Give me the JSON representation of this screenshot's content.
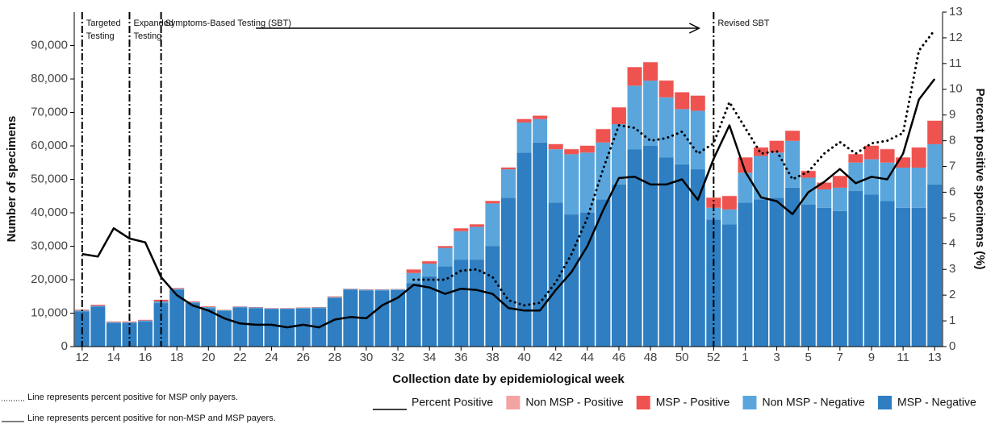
{
  "chart_data": {
    "type": "bar",
    "stacked": true,
    "x_label": "Collection date by epidemiological week",
    "y_label": "Number of specimens",
    "y2_label": "Percent positive specimens (%)",
    "categories": [
      "12",
      null,
      "14",
      null,
      "16",
      null,
      "18",
      null,
      "20",
      null,
      "22",
      null,
      "24",
      null,
      "26",
      null,
      "28",
      null,
      "30",
      null,
      "32",
      null,
      "34",
      null,
      "36",
      null,
      "38",
      null,
      "40",
      null,
      "42",
      null,
      "44",
      null,
      "46",
      null,
      "48",
      null,
      "50",
      null,
      "52",
      null,
      "1",
      null,
      "3",
      null,
      "5",
      null,
      "7",
      null,
      "9",
      null,
      "11",
      null,
      "13"
    ],
    "ylim": [
      0,
      100000
    ],
    "yticks": [
      0,
      {
        "value": 10000,
        "label": "10,000"
      },
      {
        "value": 20000,
        "label": "20,000"
      },
      {
        "value": 30000,
        "label": "30,000"
      },
      {
        "value": 40000,
        "label": "40,000"
      },
      {
        "value": 50000,
        "label": "50,000"
      },
      {
        "value": 60000,
        "label": "60,000"
      },
      {
        "value": 70000,
        "label": "70,000"
      },
      {
        "value": 80000,
        "label": "80,000"
      },
      {
        "value": 90000,
        "label": "90,000"
      }
    ],
    "y2lim": [
      0,
      13
    ],
    "y2ticks": [
      0,
      1,
      2,
      3,
      4,
      5,
      6,
      7,
      8,
      9,
      10,
      11,
      12,
      13
    ],
    "grid": false,
    "phases": [
      {
        "text": "Targeted Testing",
        "x": 0
      },
      {
        "text": "Expanded Testing",
        "x": 3
      },
      {
        "text": "Symptoms-Based Testing (SBT)",
        "x": 5
      },
      {
        "text": "Revised SBT",
        "x": 40
      }
    ],
    "series": [
      {
        "name": "Percent Positive",
        "type": "line",
        "axis": "y2",
        "color": "#000000",
        "dash": "solid",
        "note": "Line represents percent positive for non-MSP and MSP payers.",
        "values": [
          3.6,
          3.5,
          4.6,
          4.2,
          4.05,
          2.7,
          2.0,
          1.6,
          1.4,
          1.1,
          0.9,
          0.85,
          0.85,
          0.75,
          0.85,
          0.75,
          1.05,
          1.15,
          1.1,
          1.6,
          1.9,
          2.4,
          2.3,
          2.05,
          2.25,
          2.2,
          2.05,
          1.5,
          1.4,
          1.4,
          2.2,
          2.9,
          3.9,
          5.3,
          6.55,
          6.6,
          6.3,
          6.3,
          6.5,
          5.7,
          7.3,
          8.6,
          6.8,
          5.8,
          5.65,
          5.15,
          6.0,
          6.4,
          6.9,
          6.35,
          6.6,
          6.5,
          7.5,
          9.6,
          10.4
        ]
      },
      {
        "type": "line",
        "axis": "y2",
        "color": "#000000",
        "dash": "dotted",
        "note": "Line represents percent positive for MSP only payers.",
        "values": [
          null,
          null,
          null,
          null,
          null,
          null,
          null,
          null,
          null,
          null,
          null,
          null,
          null,
          null,
          null,
          null,
          null,
          null,
          null,
          null,
          null,
          2.6,
          2.6,
          2.6,
          2.95,
          3.0,
          2.7,
          1.8,
          1.6,
          1.7,
          2.5,
          3.6,
          5.0,
          6.9,
          8.6,
          8.5,
          8.0,
          8.1,
          8.35,
          7.5,
          7.9,
          9.5,
          8.5,
          7.5,
          7.6,
          6.5,
          6.8,
          7.5,
          7.95,
          7.5,
          7.9,
          8.0,
          8.3,
          11.5,
          12.3
        ]
      },
      {
        "name": "Non MSP - Positive",
        "type": "bar",
        "color": "#f4a3a3",
        "values": [
          0,
          0,
          0,
          0,
          0,
          0,
          0,
          0,
          0,
          0,
          0,
          0,
          0,
          0,
          0,
          0,
          0,
          0,
          0,
          0,
          0,
          100,
          100,
          100,
          100,
          100,
          100,
          100,
          100,
          100,
          100,
          100,
          100,
          100,
          100,
          100,
          100,
          100,
          100,
          100,
          100,
          100,
          100,
          100,
          100,
          100,
          100,
          100,
          100,
          100,
          100,
          100,
          100,
          100,
          100
        ]
      },
      {
        "name": "MSP - Positive",
        "type": "bar",
        "color": "#ef5350",
        "values": [
          200,
          300,
          200,
          200,
          200,
          500,
          200,
          200,
          200,
          100,
          100,
          100,
          100,
          100,
          100,
          100,
          200,
          100,
          100,
          100,
          100,
          1000,
          700,
          500,
          800,
          700,
          700,
          500,
          1000,
          1000,
          1500,
          1500,
          2000,
          4000,
          5000,
          5500,
          5500,
          5000,
          5000,
          4500,
          3000,
          4000,
          4500,
          2500,
          3500,
          3000,
          2000,
          2000,
          3500,
          2500,
          4000,
          4000,
          3000,
          6000,
          7000
        ]
      },
      {
        "name": "Non MSP - Negative",
        "type": "bar",
        "color": "#5aa6dc",
        "values": [
          300,
          200,
          300,
          300,
          300,
          500,
          300,
          300,
          300,
          200,
          200,
          200,
          200,
          200,
          200,
          200,
          300,
          200,
          200,
          200,
          200,
          3000,
          3800,
          5500,
          8500,
          9800,
          12800,
          8500,
          9000,
          7000,
          16000,
          18000,
          18000,
          17000,
          18000,
          19000,
          19500,
          18000,
          16500,
          17500,
          3500,
          4500,
          9000,
          13000,
          13500,
          14000,
          8000,
          5500,
          7000,
          8500,
          10500,
          11500,
          12000,
          12000,
          12000
        ]
      },
      {
        "name": "MSP - Negative",
        "type": "bar",
        "color": "#2e7ec1",
        "values": [
          10500,
          12000,
          7000,
          7000,
          7500,
          13000,
          17000,
          13000,
          11500,
          10700,
          11700,
          11500,
          11200,
          11200,
          11400,
          11500,
          14500,
          17000,
          16800,
          16800,
          16900,
          19000,
          21000,
          24000,
          26000,
          26000,
          30000,
          44500,
          58000,
          61000,
          43000,
          39500,
          40000,
          44000,
          48500,
          59000,
          60000,
          56500,
          54500,
          53000,
          38000,
          36500,
          43000,
          44000,
          44500,
          47500,
          42500,
          41500,
          40500,
          46500,
          45500,
          43500,
          41500,
          41500,
          48500
        ]
      }
    ]
  }
}
